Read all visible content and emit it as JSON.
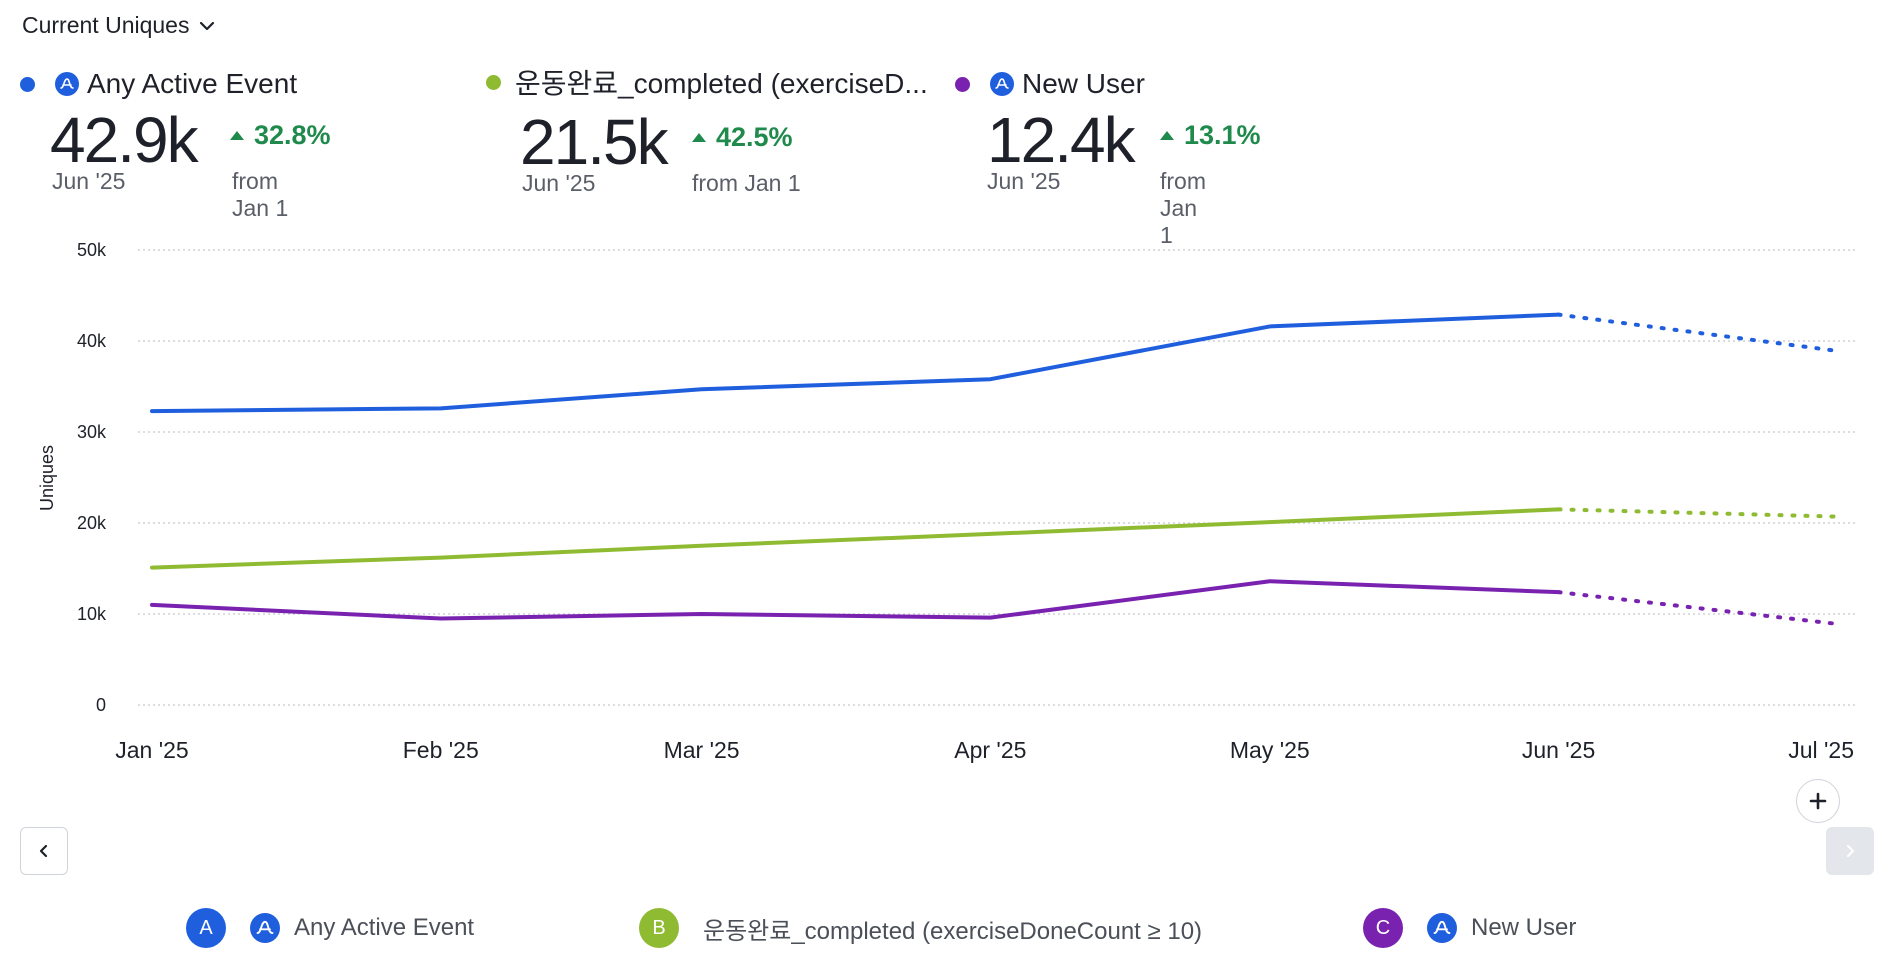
{
  "header": {
    "selector_label": "Current Uniques"
  },
  "kpis": [
    {
      "name": "Any Active Event",
      "value": "42.9k",
      "period": "Jun '25",
      "change": "32.8%",
      "from": "from Jan 1",
      "color": "#1f5fde"
    },
    {
      "name": "운동완료_completed (exerciseD...",
      "value": "21.5k",
      "period": "Jun '25",
      "change": "42.5%",
      "from": "from Jan 1",
      "color": "#8fbb32"
    },
    {
      "name": "New User",
      "value": "12.4k",
      "period": "Jun '25",
      "change": "13.1%",
      "from": "from Jan 1",
      "color": "#7a22b0"
    }
  ],
  "chart_data": {
    "type": "line",
    "ylabel": "Uniques",
    "ylim": [
      0,
      50000
    ],
    "yticks": [
      0,
      10000,
      20000,
      30000,
      40000,
      50000
    ],
    "ytick_labels": [
      "0",
      "10k",
      "20k",
      "30k",
      "40k",
      "50k"
    ],
    "categories": [
      "Jan '25",
      "Feb '25",
      "Mar '25",
      "Apr '25",
      "May '25",
      "Jun '25",
      "Jul '25"
    ],
    "x_days": [
      0,
      31,
      59,
      90,
      120,
      151,
      181
    ],
    "projected_from_index": 5,
    "grid": "horizontal-dotted",
    "series": [
      {
        "name": "Any Active Event",
        "color": "#1f5fde",
        "values": [
          32300,
          32600,
          34700,
          35800,
          41600,
          42900,
          38900
        ]
      },
      {
        "name": "운동완료_completed (exerciseDoneCount ≥ 10)",
        "color": "#8fbb32",
        "values": [
          15100,
          16200,
          17500,
          18800,
          20100,
          21500,
          20700
        ]
      },
      {
        "name": "New User",
        "color": "#7a22b0",
        "values": [
          11000,
          9500,
          10000,
          9600,
          13600,
          12400,
          8900
        ]
      }
    ]
  },
  "legend": [
    {
      "badge": "A",
      "label": "Any Active Event",
      "color": "#1f5fde"
    },
    {
      "badge": "B",
      "label": "운동완료_completed (exerciseDoneCount ≥ 10)",
      "color": "#8fbb32"
    },
    {
      "badge": "C",
      "label": "New User",
      "color": "#7a22b0"
    }
  ],
  "icons": {
    "dropdown": "chevron-down-icon",
    "event": "amplitude-icon",
    "prev": "chevron-left-icon",
    "next": "chevron-right-icon",
    "add": "plus-icon"
  }
}
